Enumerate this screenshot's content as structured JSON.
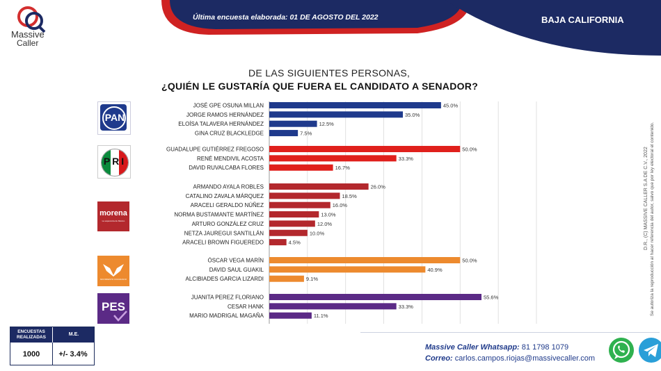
{
  "brand": {
    "name_line1": "Massive",
    "name_line2": "Caller"
  },
  "header": {
    "survey_label": "Última encuesta elaborada:",
    "survey_date": "01 DE AGOSTO DEL 2022",
    "region": "BAJA CALIFORNIA"
  },
  "question": {
    "line1": "DE LAS SIGUIENTES PERSONAS,",
    "line2": "¿QUIÉN LE GUSTARÍA QUE FUERA EL CANDIDATO  A SENADOR?"
  },
  "legal": {
    "line1": "D.R., (C) MASSIVE CALLER S.A DE C.V., 2022",
    "line2": "Se autoriza la reproducción al hacer referencia del autor, salvo que por ley electoral el contenido."
  },
  "parties": [
    {
      "label": "PAN"
    },
    {
      "label": "PRI"
    },
    {
      "label": "morena",
      "sublabel": "La esperanza de México"
    },
    {
      "label": "MOVIMIENTO CIUDADANO"
    },
    {
      "label": "PES"
    }
  ],
  "chart_data": {
    "type": "bar",
    "orientation": "horizontal",
    "xlim": [
      0,
      70
    ],
    "value_suffix": "%",
    "grid": "vertical",
    "groups": [
      {
        "party": "PAN",
        "color": "#1f3a8c",
        "bars": [
          {
            "name": "JOSÉ GPE OSUNA MILLAN",
            "value": 45.0
          },
          {
            "name": "JORGE RAMOS HERNÁNDEZ",
            "value": 35.0
          },
          {
            "name": "ELOÍSA TALAVERA HERNÁNDEZ",
            "value": 12.5
          },
          {
            "name": "GINA CRUZ BLACKLEDGE",
            "value": 7.5
          }
        ]
      },
      {
        "party": "PRI",
        "color": "#e0201c",
        "bars": [
          {
            "name": "GUADALUPE GUTIÉRREZ FREGOSO",
            "value": 50.0
          },
          {
            "name": "RENÉ MENDIVIL ACOSTA",
            "value": 33.3
          },
          {
            "name": "DAVID RUVALCABA FLORES",
            "value": 16.7
          }
        ]
      },
      {
        "party": "MORENA",
        "color": "#b3282d",
        "bars": [
          {
            "name": "ARMANDO AYALA  ROBLES",
            "value": 26.0
          },
          {
            "name": "CATALINO ZAVALA MÁRQUEZ",
            "value": 18.5
          },
          {
            "name": "ARACELI GERALDO NÚÑEZ",
            "value": 16.0
          },
          {
            "name": "NORMA BUSTAMANTE MARTÍNEZ",
            "value": 13.0
          },
          {
            "name": "ARTURO GONZÁLEZ CRUZ",
            "value": 12.0
          },
          {
            "name": "NETZA JAUREGUI SANTILLÁN",
            "value": 10.0
          },
          {
            "name": "ARACELI BROWN FIGUEREDO",
            "value": 4.5
          }
        ]
      },
      {
        "party": "MC",
        "color": "#ed8a2e",
        "bars": [
          {
            "name": "ÓSCAR VEGA MARÍN",
            "value": 50.0
          },
          {
            "name": "DAVID SAUL GUAKIL",
            "value": 40.9
          },
          {
            "name": "ALCIBIADES GARCIA LIZARDI",
            "value": 9.1
          }
        ]
      },
      {
        "party": "PES",
        "color": "#5b2a86",
        "bars": [
          {
            "name": "JUANITA PEREZ FLORIANO",
            "value": 55.6
          },
          {
            "name": "CESAR HANK",
            "value": 33.3
          },
          {
            "name": "MARIO MADRIGAL MAGAÑA",
            "value": 11.1
          }
        ]
      }
    ]
  },
  "stats": {
    "col1_header": "ENCUESTAS REALIZADAS",
    "col2_header": "M.E.",
    "col1_value": "1000",
    "col2_value": "+/- 3.4%"
  },
  "contact": {
    "whatsapp_label": "Massive Caller Whatsapp:",
    "whatsapp_number": "81 1798 1079",
    "email_label": "Correo:",
    "email": "carlos.campos.riojas@massivecaller.com"
  }
}
